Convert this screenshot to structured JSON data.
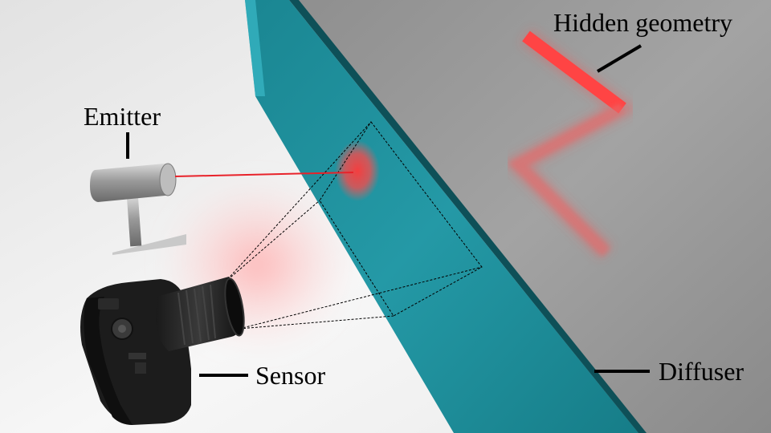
{
  "labels": {
    "hidden_geometry": "Hidden geometry",
    "emitter": "Emitter",
    "sensor": "Sensor",
    "diffuser": "Diffuser"
  },
  "components": {
    "emitter": {
      "icon": "laser-emitter-icon"
    },
    "sensor": {
      "icon": "camera-icon"
    },
    "diffuser": {
      "icon": "diffuser-panel"
    },
    "hidden_geometry": {
      "icon": "zigzag-shape"
    }
  },
  "colors": {
    "diffuser_face": "#1f8e9a",
    "diffuser_top": "#44c9d8",
    "laser": "#e8222a",
    "glow": "#ff4a4a",
    "label_text": "#000000",
    "floor": "#f4f4f4",
    "back_wall": "#9d9d9d"
  }
}
